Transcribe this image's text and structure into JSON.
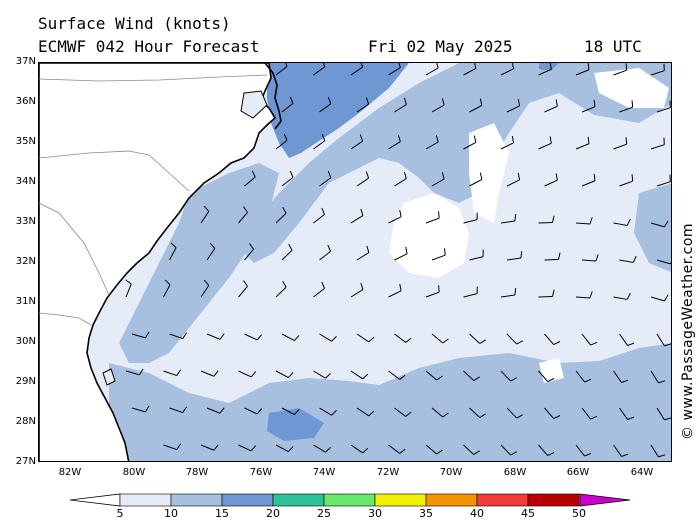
{
  "header": {
    "title": "Surface Wind (knots)",
    "model": "ECMWF 042 Hour Forecast",
    "date": "Fri 02 May 2025",
    "time": "18 UTC"
  },
  "axes": {
    "lat_labels": [
      "37N",
      "36N",
      "35N",
      "34N",
      "33N",
      "32N",
      "31N",
      "30N",
      "29N",
      "28N",
      "27N"
    ],
    "lon_labels": [
      "82W",
      "80W",
      "78W",
      "76W",
      "74W",
      "72W",
      "70W",
      "68W",
      "66W",
      "64W"
    ]
  },
  "watermark": "© www.PassageWeather.com",
  "colorbar": {
    "labels": [
      "5",
      "10",
      "15",
      "20",
      "25",
      "30",
      "35",
      "40",
      "45",
      "50"
    ],
    "colors": [
      "#e6ecf7",
      "#a8c0e0",
      "#6e97d3",
      "#2ec29a",
      "#66e86a",
      "#f2f200",
      "#f29400",
      "#ef3c3c",
      "#b80000",
      "#cc00cc"
    ]
  },
  "map_colors": {
    "land": "#ffffff",
    "calm": "#ffffff",
    "light": "#e6ecf7",
    "medium": "#a8c0e0",
    "strong": "#6e97d3",
    "coast": "#000000",
    "border": "#8a8a8a"
  }
}
